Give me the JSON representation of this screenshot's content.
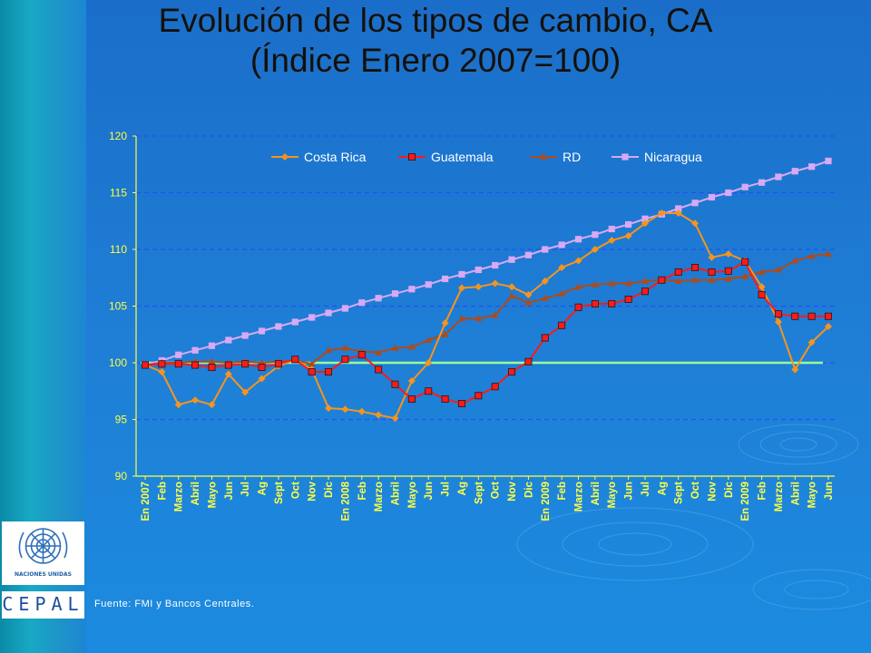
{
  "page": {
    "title_line1": "Evolución de los tipos de cambio, CA",
    "title_line2": "(Índice Enero 2007=100)",
    "source": "Fuente: FMI y Bancos Centrales.",
    "logo_un_label": "NACIONES UNIDAS",
    "logo_cepal": "CEPAL"
  },
  "colors": {
    "costa_rica": "#f7941d",
    "guatemala": "#ff1a1a",
    "rd": "#b04a18",
    "nicaragua": "#d9a9f5",
    "baseline": "#99ff99",
    "grid": "#2050ff",
    "axis_text": "#ffff44"
  },
  "chart_data": {
    "type": "line",
    "title": "",
    "xlabel": "",
    "ylabel": "",
    "ylim": [
      90,
      120
    ],
    "yticks": [
      90,
      95,
      100,
      105,
      110,
      115,
      120
    ],
    "grid": "horizontal dashed",
    "legend_position": "top",
    "x_tick_labels": [
      "En 2007",
      "Feb",
      "Marzo",
      "Abril",
      "Mayo",
      "Jun",
      "Jul",
      "Ag",
      "Sept",
      "Oct",
      "Nov",
      "Dic",
      "En 2008",
      "Feb",
      "Marzo",
      "Abril",
      "Mayo",
      "Jun",
      "Jul",
      "Ag",
      "Sept",
      "Oct",
      "Nov",
      "Dic",
      "En 2009",
      "Feb",
      "Marzo",
      "Abril",
      "Mayo",
      "Jun",
      "Jul",
      "Ag",
      "Sept",
      "Oct",
      "Nov",
      "Dic",
      "En 2009",
      "Feb",
      "Marzo",
      "Abril",
      "Mayo",
      "Jun"
    ],
    "reference_line": 100,
    "series": [
      {
        "name": "Costa Rica",
        "color_key": "costa_rica",
        "marker": "diamond",
        "values": [
          99.8,
          99.2,
          96.3,
          96.7,
          96.3,
          99.0,
          97.4,
          98.6,
          99.7,
          100.3,
          99.4,
          96.0,
          95.9,
          95.7,
          95.4,
          95.1,
          98.4,
          100.0,
          103.5,
          106.6,
          106.7,
          107.0,
          106.7,
          106.0,
          107.2,
          108.4,
          109.0,
          110.0,
          110.8,
          111.2,
          112.3,
          113.2,
          113.2,
          112.3,
          109.3,
          109.6,
          109.0,
          106.7,
          103.6,
          99.4,
          101.8,
          103.2
        ]
      },
      {
        "name": "Guatemala",
        "color_key": "guatemala",
        "marker": "square",
        "values": [
          99.8,
          99.9,
          99.9,
          99.8,
          99.6,
          99.8,
          99.9,
          99.6,
          99.9,
          100.3,
          99.2,
          99.2,
          100.3,
          100.7,
          99.4,
          98.1,
          96.8,
          97.5,
          96.8,
          96.4,
          97.1,
          97.9,
          99.2,
          100.1,
          102.2,
          103.3,
          104.9,
          105.2,
          105.2,
          105.6,
          106.3,
          107.3,
          108.0,
          108.4,
          108.0,
          108.1,
          108.9,
          106.0,
          104.3,
          104.1,
          104.1,
          104.1
        ]
      },
      {
        "name": "RD",
        "color_key": "rd",
        "marker": "triangle",
        "values": [
          99.8,
          100.0,
          100.0,
          100.1,
          100.1,
          100.0,
          100.1,
          100.0,
          100.1,
          100.2,
          99.9,
          101.1,
          101.3,
          101.0,
          100.9,
          101.3,
          101.4,
          102.0,
          102.5,
          103.9,
          103.9,
          104.2,
          105.9,
          105.3,
          105.7,
          106.1,
          106.7,
          106.9,
          107.0,
          107.0,
          107.2,
          107.3,
          107.2,
          107.3,
          107.3,
          107.4,
          107.6,
          108.0,
          108.2,
          109.0,
          109.4,
          109.6
        ]
      },
      {
        "name": "Nicaragua",
        "color_key": "nicaragua",
        "marker": "square",
        "values": [
          99.8,
          100.2,
          100.7,
          101.1,
          101.5,
          102.0,
          102.4,
          102.8,
          103.2,
          103.6,
          104.0,
          104.4,
          104.8,
          105.3,
          105.7,
          106.1,
          106.5,
          106.9,
          107.4,
          107.8,
          108.2,
          108.6,
          109.1,
          109.5,
          110.0,
          110.4,
          110.9,
          111.3,
          111.8,
          112.2,
          112.7,
          113.1,
          113.6,
          114.1,
          114.6,
          115.0,
          115.5,
          115.9,
          116.4,
          116.9,
          117.3,
          117.8
        ]
      }
    ]
  }
}
